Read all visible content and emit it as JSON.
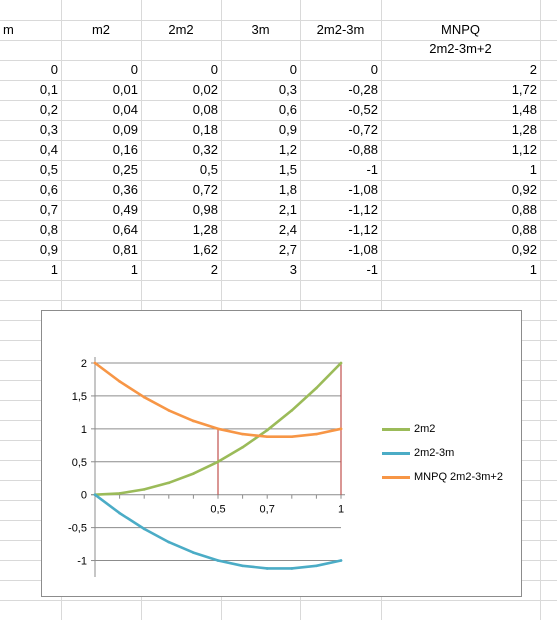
{
  "sheet": {
    "headers": [
      "m",
      "m2",
      "2m2",
      "3m",
      "2m2-3m",
      "MNPQ"
    ],
    "header_row2_last": "2m2-3m+2",
    "rows": [
      [
        "0",
        "0",
        "0",
        "0",
        "0",
        "2"
      ],
      [
        "0,1",
        "0,01",
        "0,02",
        "0,3",
        "-0,28",
        "1,72"
      ],
      [
        "0,2",
        "0,04",
        "0,08",
        "0,6",
        "-0,52",
        "1,48"
      ],
      [
        "0,3",
        "0,09",
        "0,18",
        "0,9",
        "-0,72",
        "1,28"
      ],
      [
        "0,4",
        "0,16",
        "0,32",
        "1,2",
        "-0,88",
        "1,12"
      ],
      [
        "0,5",
        "0,25",
        "0,5",
        "1,5",
        "-1",
        "1"
      ],
      [
        "0,6",
        "0,36",
        "0,72",
        "1,8",
        "-1,08",
        "0,92"
      ],
      [
        "0,7",
        "0,49",
        "0,98",
        "2,1",
        "-1,12",
        "0,88"
      ],
      [
        "0,8",
        "0,64",
        "1,28",
        "2,4",
        "-1,12",
        "0,88"
      ],
      [
        "0,9",
        "0,81",
        "1,62",
        "2,7",
        "-1,08",
        "0,92"
      ],
      [
        "1",
        "1",
        "2",
        "3",
        "-1",
        "1"
      ]
    ]
  },
  "chart_data": {
    "type": "line",
    "x": [
      0,
      0.1,
      0.2,
      0.3,
      0.4,
      0.5,
      0.6,
      0.7,
      0.8,
      0.9,
      1
    ],
    "series": [
      {
        "name": "2m2",
        "color": "#9bbb59",
        "values": [
          0,
          0.02,
          0.08,
          0.18,
          0.32,
          0.5,
          0.72,
          0.98,
          1.28,
          1.62,
          2
        ]
      },
      {
        "name": "2m2-3m",
        "color": "#4bacc6",
        "values": [
          0,
          -0.28,
          -0.52,
          -0.72,
          -0.88,
          -1,
          -1.08,
          -1.12,
          -1.12,
          -1.08,
          -1
        ]
      },
      {
        "name": "MNPQ 2m2-3m+2",
        "color": "#f79646",
        "values": [
          2,
          1.72,
          1.48,
          1.28,
          1.12,
          1,
          0.92,
          0.88,
          0.88,
          0.92,
          1
        ]
      }
    ],
    "ylim": [
      -1.25,
      2
    ],
    "xlim": [
      0,
      1
    ],
    "y_ticks": [
      -1,
      -0.5,
      0,
      0.5,
      1,
      1.5,
      2
    ],
    "y_tick_labels": [
      "-1",
      "-0,5",
      "0",
      "0,5",
      "1",
      "1,5",
      "2"
    ],
    "x_tick_labels": [
      {
        "value": 0.5,
        "label": "0,5"
      },
      {
        "value": 0.7,
        "label": "0,7"
      },
      {
        "value": 1,
        "label": "1"
      }
    ],
    "vertical_markers": [
      {
        "x": 0.5,
        "from": 0,
        "to": 1,
        "color": "#c0504d"
      },
      {
        "x": 1,
        "from": 0,
        "to": 2,
        "color": "#c0504d"
      }
    ],
    "grid": true,
    "legend_position": "right",
    "title": "",
    "xlabel": "",
    "ylabel": ""
  }
}
